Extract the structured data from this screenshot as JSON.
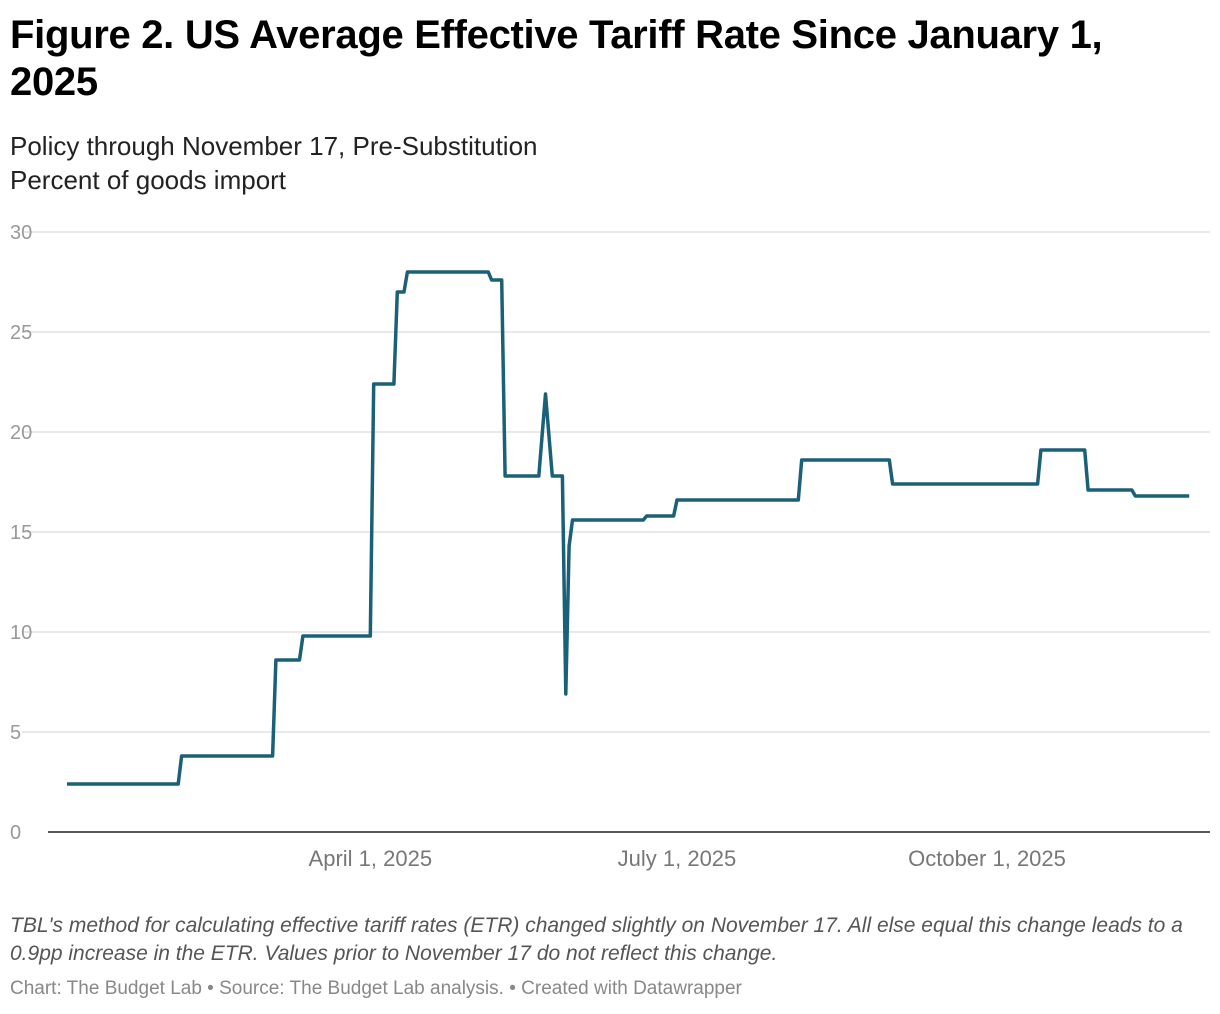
{
  "title": "Figure 2. US Average Effective Tariff Rate Since January 1, 2025",
  "subtitle": "Policy through November 17, Pre-Substitution",
  "unit_label": "Percent of goods import",
  "note": "TBL's method for calculating effective tariff rates (ETR) changed slightly on November 17. All else equal this change leads to a 0.9pp increase in the ETR. Values prior to November 17 do not reflect this change.",
  "footer": "Chart: The Budget Lab • Source: The Budget Lab analysis. • Created with Datawrapper",
  "chart_data": {
    "type": "line",
    "line_color": "#1a6078",
    "grid": true,
    "ylim": [
      0,
      30
    ],
    "yticks": [
      0,
      5,
      10,
      15,
      20,
      25,
      30
    ],
    "xlim": [
      "2025-01-01",
      "2025-11-30"
    ],
    "xticks": [
      {
        "date": "2025-04-01",
        "label": "April 1, 2025"
      },
      {
        "date": "2025-07-01",
        "label": "July 1, 2025"
      },
      {
        "date": "2025-10-01",
        "label": "October 1, 2025"
      }
    ],
    "series": [
      {
        "points": [
          [
            "2025-01-01",
            2.4
          ],
          [
            "2025-02-03",
            2.4
          ],
          [
            "2025-02-04",
            3.8
          ],
          [
            "2025-03-03",
            3.8
          ],
          [
            "2025-03-04",
            8.6
          ],
          [
            "2025-03-11",
            8.6
          ],
          [
            "2025-03-12",
            9.8
          ],
          [
            "2025-04-01",
            9.8
          ],
          [
            "2025-04-02",
            22.4
          ],
          [
            "2025-04-08",
            22.4
          ],
          [
            "2025-04-09",
            27.0
          ],
          [
            "2025-04-11",
            27.0
          ],
          [
            "2025-04-12",
            28.0
          ],
          [
            "2025-05-06",
            28.0
          ],
          [
            "2025-05-07",
            27.6
          ],
          [
            "2025-05-10",
            27.6
          ],
          [
            "2025-05-11",
            17.8
          ],
          [
            "2025-05-21",
            17.8
          ],
          [
            "2025-05-23",
            21.9
          ],
          [
            "2025-05-25",
            17.8
          ],
          [
            "2025-05-28",
            17.8
          ],
          [
            "2025-05-29",
            6.9
          ],
          [
            "2025-05-30",
            14.3
          ],
          [
            "2025-05-31",
            15.6
          ],
          [
            "2025-06-21",
            15.6
          ],
          [
            "2025-06-22",
            15.8
          ],
          [
            "2025-06-30",
            15.8
          ],
          [
            "2025-07-01",
            16.6
          ],
          [
            "2025-08-06",
            16.6
          ],
          [
            "2025-08-07",
            18.6
          ],
          [
            "2025-09-02",
            18.6
          ],
          [
            "2025-09-03",
            17.4
          ],
          [
            "2025-10-16",
            17.4
          ],
          [
            "2025-10-17",
            19.1
          ],
          [
            "2025-10-30",
            19.1
          ],
          [
            "2025-10-31",
            17.1
          ],
          [
            "2025-11-13",
            17.1
          ],
          [
            "2025-11-14",
            16.8
          ],
          [
            "2025-11-30",
            16.8
          ]
        ]
      }
    ]
  }
}
